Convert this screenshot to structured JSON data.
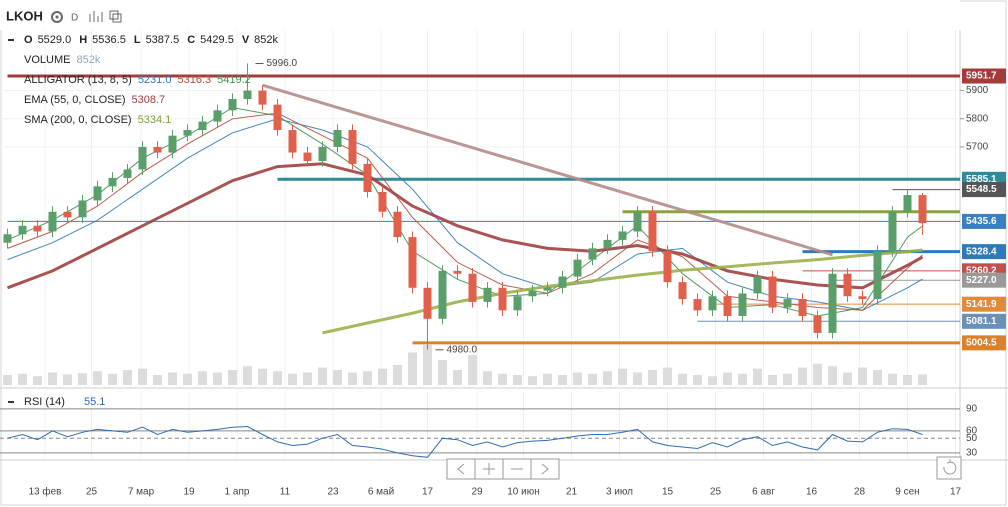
{
  "header": {
    "symbol": "LKOH",
    "interval": "D",
    "ohlcv": [
      {
        "key": "O",
        "value": "5529.0"
      },
      {
        "key": "H",
        "value": "5536.5"
      },
      {
        "key": "L",
        "value": "5387.5"
      },
      {
        "key": "C",
        "value": "5429.5"
      },
      {
        "key": "V",
        "value": "852k"
      }
    ]
  },
  "legend": [
    {
      "name": "VOLUME",
      "values": [
        "852k"
      ],
      "colors": [
        "#8fa8c8"
      ]
    },
    {
      "name": "ALLIGATOR (13, 8, 5)",
      "values": [
        "5231.0",
        "5316.3",
        "5419.2"
      ],
      "colors": [
        "#2f79b9",
        "#b84a3c",
        "#3f8f4f"
      ]
    },
    {
      "name": "EMA (55, 0, CLOSE)",
      "values": [
        "5308.7"
      ],
      "colors": [
        "#a04040"
      ]
    },
    {
      "name": "SMA (200, 0, CLOSE)",
      "values": [
        "5334.1"
      ],
      "colors": [
        "#7f9a3a"
      ]
    }
  ],
  "chart_data": {
    "type": "candlestick",
    "xlim": [
      -0.5,
      63.5
    ],
    "ylim": [
      4855,
      6115
    ],
    "yticks": [
      5700,
      5800,
      5900
    ],
    "grid": true,
    "up_color": "#5a9e6a",
    "down_color": "#e0604c",
    "xticks": [
      {
        "value": 2.5,
        "label": "13 фев"
      },
      {
        "value": 5.6,
        "label": "25"
      },
      {
        "value": 8.9,
        "label": "7 мар"
      },
      {
        "value": 12.1,
        "label": "19"
      },
      {
        "value": 15.3,
        "label": "1 апр"
      },
      {
        "value": 18.5,
        "label": "11"
      },
      {
        "value": 21.7,
        "label": "23"
      },
      {
        "value": 24.9,
        "label": "6 май"
      },
      {
        "value": 28,
        "label": "17"
      },
      {
        "value": 31.3,
        "label": "29"
      },
      {
        "value": 34.4,
        "label": "10 июн"
      },
      {
        "value": 37.6,
        "label": "21"
      },
      {
        "value": 40.8,
        "label": "3 июл"
      },
      {
        "value": 44,
        "label": "15"
      },
      {
        "value": 47.2,
        "label": "25"
      },
      {
        "value": 50.4,
        "label": "6 авг"
      },
      {
        "value": 53.6,
        "label": "16"
      },
      {
        "value": 56.8,
        "label": "28"
      },
      {
        "value": 60,
        "label": "9 сен"
      },
      {
        "value": 63.2,
        "label": "17"
      }
    ],
    "open": [
      5360,
      5390,
      5420,
      5400,
      5470,
      5450,
      5510,
      5560,
      5590,
      5620,
      5700,
      5680,
      5740,
      5760,
      5790,
      5830,
      5870,
      5900,
      5850,
      5760,
      5680,
      5650,
      5700,
      5760,
      5640,
      5540,
      5470,
      5380,
      5200,
      5090,
      5260,
      5250,
      5150,
      5200,
      5120,
      5170,
      5190,
      5200,
      5240,
      5300,
      5340,
      5370,
      5400,
      5470,
      5330,
      5220,
      5160,
      5120,
      5170,
      5100,
      5180,
      5240,
      5130,
      5160,
      5100,
      5040,
      5250,
      5170,
      5160,
      5330,
      5470,
      5529
    ],
    "high": [
      5410,
      5440,
      5440,
      5490,
      5490,
      5530,
      5580,
      5610,
      5640,
      5720,
      5720,
      5760,
      5780,
      5810,
      5850,
      5890,
      5996,
      5920,
      5870,
      5780,
      5700,
      5720,
      5780,
      5780,
      5660,
      5560,
      5490,
      5400,
      5220,
      5280,
      5280,
      5270,
      5220,
      5220,
      5190,
      5210,
      5220,
      5260,
      5320,
      5360,
      5390,
      5420,
      5490,
      5490,
      5350,
      5240,
      5180,
      5190,
      5190,
      5200,
      5260,
      5260,
      5180,
      5180,
      5120,
      5270,
      5270,
      5190,
      5350,
      5490,
      5550,
      5536.5
    ],
    "low": [
      5340,
      5370,
      5380,
      5380,
      5430,
      5430,
      5490,
      5540,
      5570,
      5600,
      5660,
      5660,
      5720,
      5740,
      5770,
      5810,
      5850,
      5830,
      5740,
      5660,
      5630,
      5630,
      5680,
      5620,
      5520,
      5450,
      5360,
      5180,
      4980,
      5070,
      5230,
      5130,
      5130,
      5100,
      5100,
      5150,
      5170,
      5180,
      5220,
      5280,
      5320,
      5350,
      5380,
      5310,
      5200,
      5140,
      5100,
      5100,
      5080,
      5080,
      5160,
      5110,
      5110,
      5080,
      5020,
      5020,
      5150,
      5140,
      5140,
      5310,
      5450,
      5387.5
    ],
    "close": [
      5390,
      5420,
      5400,
      5470,
      5450,
      5510,
      5560,
      5590,
      5620,
      5700,
      5680,
      5740,
      5760,
      5790,
      5830,
      5870,
      5900,
      5850,
      5760,
      5680,
      5650,
      5700,
      5760,
      5640,
      5540,
      5470,
      5380,
      5200,
      5090,
      5260,
      5250,
      5150,
      5200,
      5120,
      5170,
      5190,
      5200,
      5240,
      5300,
      5340,
      5370,
      5400,
      5470,
      5330,
      5220,
      5160,
      5120,
      5170,
      5100,
      5180,
      5240,
      5130,
      5160,
      5100,
      5040,
      5250,
      5170,
      5160,
      5330,
      5470,
      5529,
      5429.5
    ],
    "volume": [
      800,
      900,
      700,
      1000,
      850,
      950,
      1100,
      900,
      1200,
      1300,
      800,
      1000,
      900,
      1100,
      1000,
      1200,
      1500,
      1300,
      1100,
      900,
      1000,
      1400,
      1200,
      1000,
      1100,
      1300,
      1600,
      2600,
      3200,
      2000,
      1200,
      2400,
      1100,
      900,
      800,
      700,
      900,
      800,
      1000,
      900,
      1100,
      1300,
      1000,
      1200,
      1400,
      900,
      800,
      700,
      1000,
      900,
      1300,
      800,
      900,
      1400,
      1700,
      1500,
      1000,
      1400,
      1200,
      900,
      800,
      852
    ],
    "volume_lim": [
      0,
      4000
    ],
    "volume_color": "#dcdcdc",
    "lines": [
      {
        "color": "#2f79b9",
        "width": 1,
        "x": [
          0,
          3,
          6,
          9,
          12,
          15,
          18,
          21,
          24,
          27,
          30,
          33,
          36,
          39,
          42,
          45,
          48,
          51,
          54,
          57,
          60,
          61
        ],
        "values": [
          5300,
          5360,
          5440,
          5550,
          5660,
          5750,
          5800,
          5760,
          5700,
          5550,
          5360,
          5250,
          5200,
          5220,
          5320,
          5340,
          5220,
          5170,
          5150,
          5120,
          5200,
          5231.0
        ]
      },
      {
        "color": "#b84a3c",
        "width": 1,
        "x": [
          0,
          3,
          6,
          9,
          12,
          15,
          18,
          21,
          24,
          27,
          30,
          33,
          36,
          39,
          42,
          45,
          48,
          51,
          54,
          57,
          60,
          61
        ],
        "values": [
          5340,
          5400,
          5490,
          5610,
          5710,
          5800,
          5820,
          5740,
          5660,
          5450,
          5290,
          5210,
          5180,
          5250,
          5370,
          5310,
          5170,
          5150,
          5130,
          5120,
          5270,
          5316.3
        ]
      },
      {
        "color": "#3f8f4f",
        "width": 1,
        "x": [
          0,
          3,
          6,
          9,
          12,
          15,
          18,
          21,
          24,
          27,
          30,
          33,
          36,
          39,
          42,
          45,
          48,
          51,
          54,
          57,
          60,
          61
        ],
        "values": [
          5370,
          5440,
          5530,
          5660,
          5740,
          5840,
          5810,
          5710,
          5600,
          5330,
          5230,
          5170,
          5180,
          5300,
          5420,
          5250,
          5130,
          5140,
          5100,
          5130,
          5380,
          5419.2
        ]
      },
      {
        "color": "#a04040",
        "width": 3,
        "x": [
          0,
          3,
          6,
          9,
          12,
          15,
          18,
          21,
          24,
          27,
          30,
          33,
          36,
          39,
          42,
          45,
          48,
          51,
          54,
          57,
          60,
          61
        ],
        "values": [
          5200,
          5260,
          5340,
          5420,
          5500,
          5580,
          5630,
          5640,
          5600,
          5490,
          5420,
          5370,
          5340,
          5330,
          5350,
          5320,
          5260,
          5230,
          5210,
          5200,
          5280,
          5308.7
        ]
      },
      {
        "color": "#9ab04a",
        "width": 3,
        "x": [
          21,
          24,
          27,
          30,
          33,
          36,
          39,
          42,
          45,
          48,
          51,
          54,
          57,
          60,
          61
        ],
        "values": [
          5040,
          5075,
          5110,
          5150,
          5180,
          5205,
          5225,
          5245,
          5262,
          5275,
          5288,
          5300,
          5315,
          5328,
          5334.1
        ]
      },
      {
        "color": "#b58a8a",
        "width": 3,
        "x": [
          17,
          55
        ],
        "values": [
          5919,
          5317
        ]
      }
    ],
    "levels": [
      {
        "value": 5951.7,
        "label": "5951.7",
        "color": "#a33b3b",
        "from": 0,
        "width": 3
      },
      {
        "value": 5585.1,
        "label": "5585.1",
        "color": "#2e8b9a",
        "from": 18,
        "width": 3
      },
      {
        "value": 5548.5,
        "label": "5548.5",
        "color": "#555555",
        "from": 59,
        "width": 1
      },
      {
        "value": 5470,
        "color": "#8aa33b",
        "from": 41,
        "width": 3
      },
      {
        "value": 5435.6,
        "label": "5435.6",
        "color": "#3a7fc1",
        "from": 0,
        "width": 1
      },
      {
        "value": 5328.4,
        "label": "5328.4",
        "color": "#2f79b9",
        "from": 53,
        "width": 3
      },
      {
        "value": 5260.2,
        "label": "5260.2",
        "color": "#c0504d",
        "from": 53,
        "width": 1
      },
      {
        "value": 5227,
        "label": "5227.0",
        "color": "#999999",
        "from": 55,
        "width": 1
      },
      {
        "value": 5141.9,
        "label": "5141.9",
        "color": "#e08a3c",
        "from": 47,
        "width": 1
      },
      {
        "value": 5081.1,
        "label": "5081.1",
        "color": "#6b8fb5",
        "from": 46,
        "width": 1
      },
      {
        "value": 5004.5,
        "label": "5004.5",
        "color": "#d9822b",
        "from": 27,
        "width": 3
      }
    ],
    "annotations": [
      {
        "label": "5996.0",
        "index": 16,
        "value": 5996
      },
      {
        "label": "4980.0",
        "index": 28,
        "value": 4980
      }
    ],
    "rsi": {
      "title": "RSI (14)",
      "value_label": "55.1",
      "color": "#2f6db3",
      "ylim": [
        23,
        113
      ],
      "yticks": [
        30,
        50,
        60,
        90
      ],
      "dashed": 50,
      "values": [
        50,
        55,
        48,
        60,
        52,
        58,
        62,
        60,
        58,
        65,
        55,
        62,
        58,
        60,
        62,
        65,
        66,
        55,
        45,
        40,
        42,
        50,
        55,
        40,
        38,
        35,
        30,
        26,
        24,
        50,
        48,
        40,
        45,
        38,
        44,
        46,
        47,
        50,
        53,
        55,
        55,
        58,
        62,
        45,
        40,
        38,
        36,
        44,
        38,
        48,
        52,
        40,
        45,
        38,
        34,
        55,
        46,
        45,
        58,
        63,
        62,
        55.1
      ]
    }
  }
}
